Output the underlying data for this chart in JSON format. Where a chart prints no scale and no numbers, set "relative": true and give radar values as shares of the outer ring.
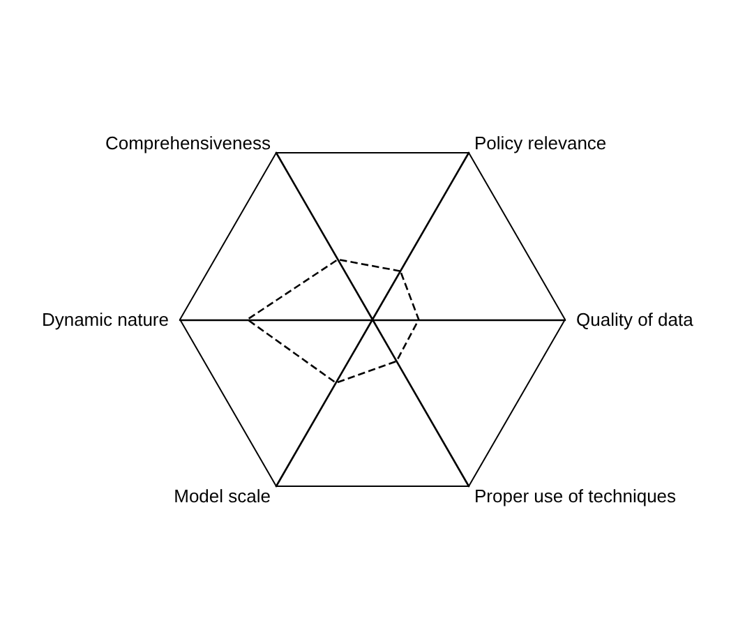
{
  "chart_data": {
    "type": "radar",
    "relative": true,
    "categories": [
      "Policy relevance",
      "Quality of data",
      "Proper use of techniques",
      "Model scale",
      "Dynamic nature",
      "Comprehensiveness"
    ],
    "series": [
      {
        "color": "#000000",
        "values": [
          0.29,
          0.24,
          0.25,
          0.38,
          0.65,
          0.36
        ]
      }
    ],
    "line_style": "dashed",
    "marker": "none"
  }
}
